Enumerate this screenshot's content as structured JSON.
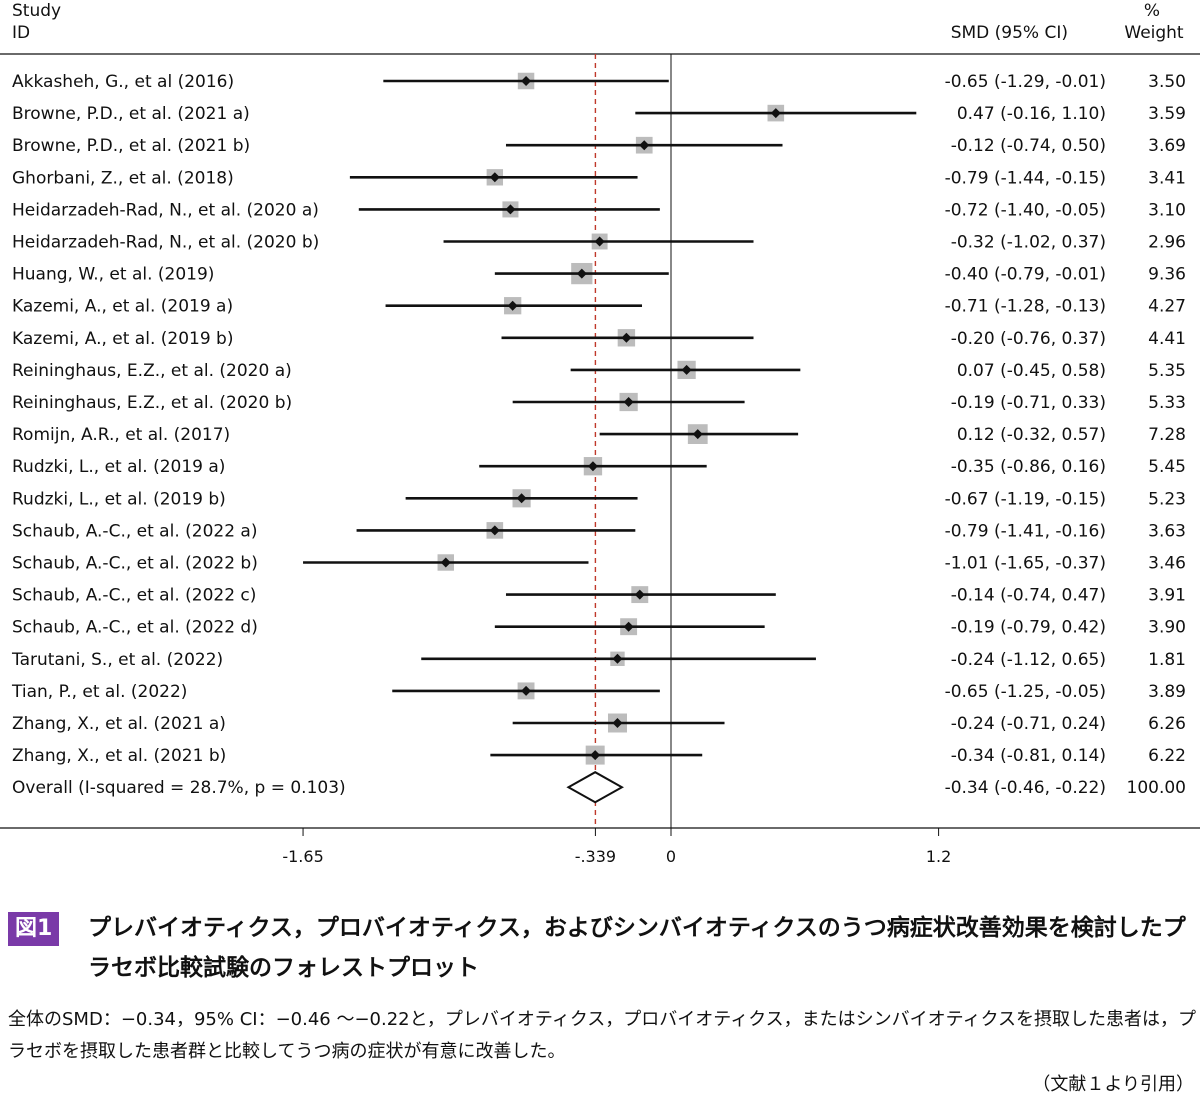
{
  "headers": {
    "study_line1": "Study",
    "study_line2": "ID",
    "smd": "SMD (95% CI)",
    "weight_line1": "%",
    "weight_line2": "Weight"
  },
  "chart_data": {
    "type": "forest",
    "xlim": [
      -1.65,
      1.2
    ],
    "xticks": [
      "-1.65",
      "-.339",
      "0",
      "1.2"
    ],
    "xtick_values": [
      -1.65,
      -0.339,
      0,
      1.2
    ],
    "reference_line": -0.339,
    "null_line": 0,
    "studies": [
      {
        "label": "Akkasheh, G., et al (2016)",
        "smd": -0.65,
        "lo": -1.29,
        "hi": -0.01,
        "ci_text": "-0.65 (-1.29, -0.01)",
        "weight": "3.50"
      },
      {
        "label": "Browne, P.D., et al. (2021 a)",
        "smd": 0.47,
        "lo": -0.16,
        "hi": 1.1,
        "ci_text": "0.47 (-0.16, 1.10)",
        "weight": "3.59"
      },
      {
        "label": "Browne, P.D., et al. (2021 b)",
        "smd": -0.12,
        "lo": -0.74,
        "hi": 0.5,
        "ci_text": "-0.12 (-0.74, 0.50)",
        "weight": "3.69"
      },
      {
        "label": "Ghorbani, Z., et al. (2018)",
        "smd": -0.79,
        "lo": -1.44,
        "hi": -0.15,
        "ci_text": "-0.79 (-1.44, -0.15)",
        "weight": "3.41"
      },
      {
        "label": "Heidarzadeh-Rad, N., et al. (2020 a)",
        "smd": -0.72,
        "lo": -1.4,
        "hi": -0.05,
        "ci_text": "-0.72 (-1.40, -0.05)",
        "weight": "3.10"
      },
      {
        "label": "Heidarzadeh-Rad, N., et al. (2020 b)",
        "smd": -0.32,
        "lo": -1.02,
        "hi": 0.37,
        "ci_text": "-0.32 (-1.02, 0.37)",
        "weight": "2.96"
      },
      {
        "label": "Huang, W., et al. (2019)",
        "smd": -0.4,
        "lo": -0.79,
        "hi": -0.01,
        "ci_text": "-0.40 (-0.79, -0.01)",
        "weight": "9.36"
      },
      {
        "label": "Kazemi, A., et al. (2019 a)",
        "smd": -0.71,
        "lo": -1.28,
        "hi": -0.13,
        "ci_text": "-0.71 (-1.28, -0.13)",
        "weight": "4.27"
      },
      {
        "label": "Kazemi, A., et al. (2019 b)",
        "smd": -0.2,
        "lo": -0.76,
        "hi": 0.37,
        "ci_text": "-0.20 (-0.76, 0.37)",
        "weight": "4.41"
      },
      {
        "label": "Reininghaus, E.Z., et al. (2020 a)",
        "smd": 0.07,
        "lo": -0.45,
        "hi": 0.58,
        "ci_text": "0.07 (-0.45, 0.58)",
        "weight": "5.35"
      },
      {
        "label": "Reininghaus, E.Z., et al. (2020 b)",
        "smd": -0.19,
        "lo": -0.71,
        "hi": 0.33,
        "ci_text": "-0.19 (-0.71, 0.33)",
        "weight": "5.33"
      },
      {
        "label": "Romijn, A.R., et al. (2017)",
        "smd": 0.12,
        "lo": -0.32,
        "hi": 0.57,
        "ci_text": "0.12 (-0.32, 0.57)",
        "weight": "7.28"
      },
      {
        "label": "Rudzki, L., et al. (2019 a)",
        "smd": -0.35,
        "lo": -0.86,
        "hi": 0.16,
        "ci_text": "-0.35 (-0.86, 0.16)",
        "weight": "5.45"
      },
      {
        "label": "Rudzki, L., et al. (2019 b)",
        "smd": -0.67,
        "lo": -1.19,
        "hi": -0.15,
        "ci_text": "-0.67 (-1.19, -0.15)",
        "weight": "5.23"
      },
      {
        "label": "Schaub, A.-C., et al. (2022 a)",
        "smd": -0.79,
        "lo": -1.41,
        "hi": -0.16,
        "ci_text": "-0.79 (-1.41, -0.16)",
        "weight": "3.63"
      },
      {
        "label": "Schaub, A.-C., et al. (2022 b)",
        "smd": -1.01,
        "lo": -1.65,
        "hi": -0.37,
        "ci_text": "-1.01 (-1.65, -0.37)",
        "weight": "3.46"
      },
      {
        "label": "Schaub, A.-C., et al. (2022 c)",
        "smd": -0.14,
        "lo": -0.74,
        "hi": 0.47,
        "ci_text": "-0.14 (-0.74, 0.47)",
        "weight": "3.91"
      },
      {
        "label": "Schaub, A.-C., et al. (2022 d)",
        "smd": -0.19,
        "lo": -0.79,
        "hi": 0.42,
        "ci_text": "-0.19 (-0.79, 0.42)",
        "weight": "3.90"
      },
      {
        "label": "Tarutani, S., et al. (2022)",
        "smd": -0.24,
        "lo": -1.12,
        "hi": 0.65,
        "ci_text": "-0.24 (-1.12, 0.65)",
        "weight": "1.81"
      },
      {
        "label": "Tian, P., et al. (2022)",
        "smd": -0.65,
        "lo": -1.25,
        "hi": -0.05,
        "ci_text": "-0.65 (-1.25, -0.05)",
        "weight": "3.89"
      },
      {
        "label": "Zhang, X., et al. (2021 a)",
        "smd": -0.24,
        "lo": -0.71,
        "hi": 0.24,
        "ci_text": "-0.24 (-0.71, 0.24)",
        "weight": "6.26"
      },
      {
        "label": "Zhang, X., et al. (2021 b)",
        "smd": -0.34,
        "lo": -0.81,
        "hi": 0.14,
        "ci_text": "-0.34 (-0.81, 0.14)",
        "weight": "6.22"
      }
    ],
    "overall": {
      "label": "Overall (I-squared = 28.7%, p = 0.103)",
      "smd": -0.34,
      "lo": -0.46,
      "hi": -0.22,
      "ci_text": "-0.34 (-0.46, -0.22)",
      "weight": "100.00"
    }
  },
  "caption": {
    "badge": "図1",
    "title": "プレバイオティクス，プロバイオティクス，およびシンバイオティクスのうつ病症状改善効果を検討したプラセボ比較試験のフォレストプロット",
    "description": "全体のSMD：−0.34，95% CI：−0.46 〜−0.22と，プレバイオティクス，プロバイオティクス，またはシンバイオティクスを摂取した患者は，プラセボを摂取した患者群と比較してうつ病の症状が有意に改善した。",
    "citation": "（文献１より引用）"
  }
}
